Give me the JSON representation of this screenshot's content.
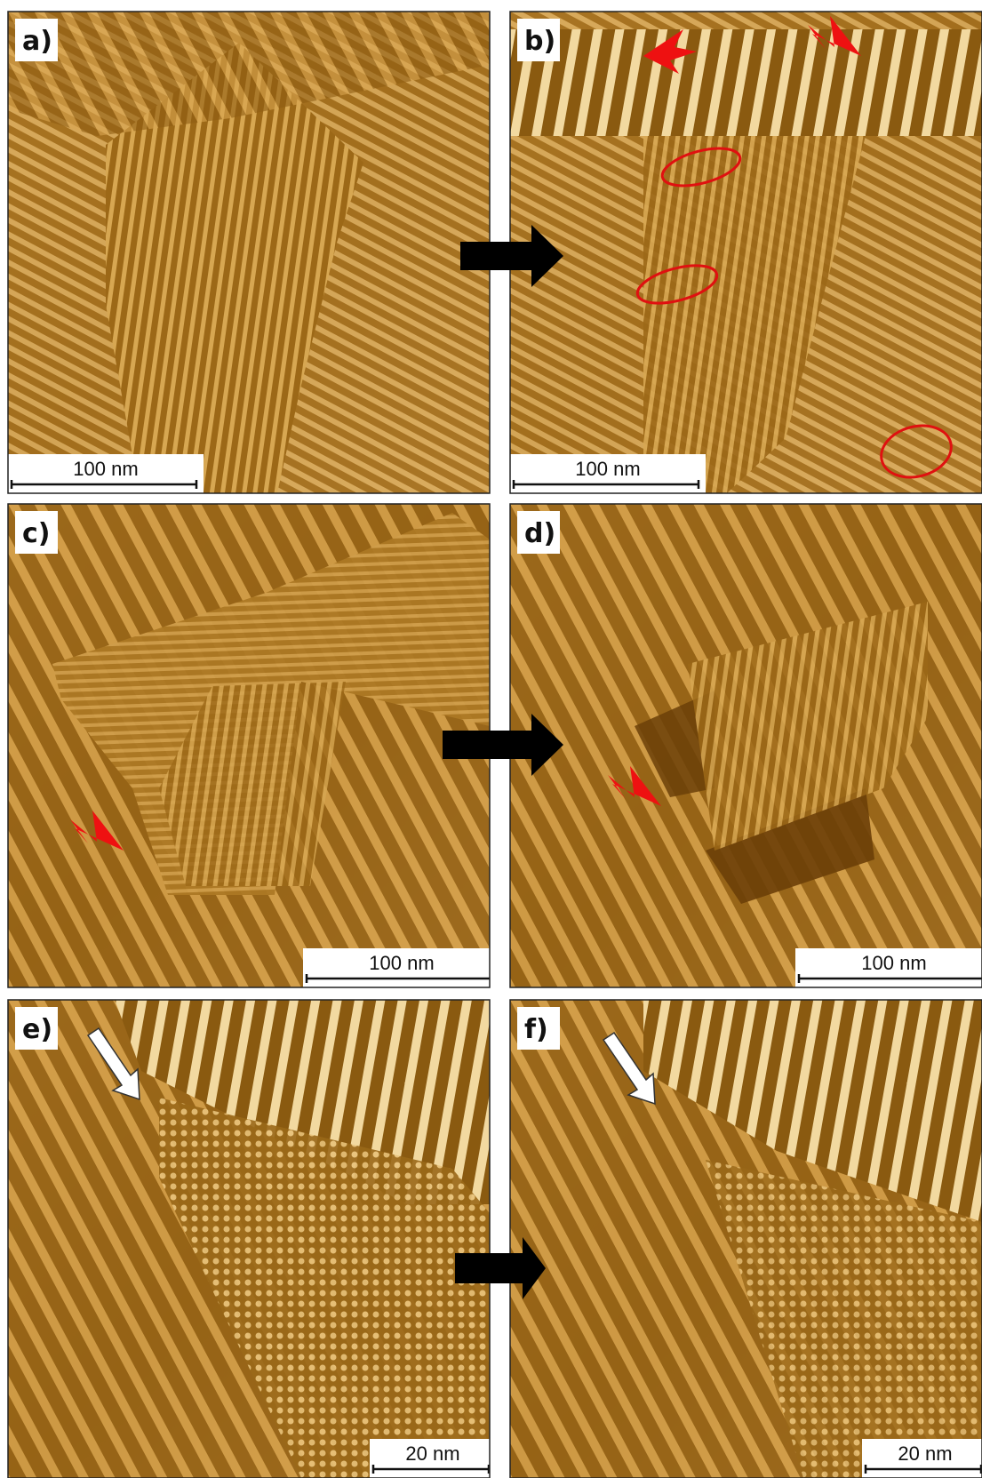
{
  "panels": [
    {
      "label": "a)",
      "scale_bar": "100 nm"
    },
    {
      "label": "b)",
      "scale_bar": "100 nm"
    },
    {
      "label": "c)",
      "scale_bar": "100 nm"
    },
    {
      "label": "d)",
      "scale_bar": "100 nm"
    },
    {
      "label": "e)",
      "scale_bar": "20 nm"
    },
    {
      "label": "f)",
      "scale_bar": "20 nm"
    }
  ]
}
